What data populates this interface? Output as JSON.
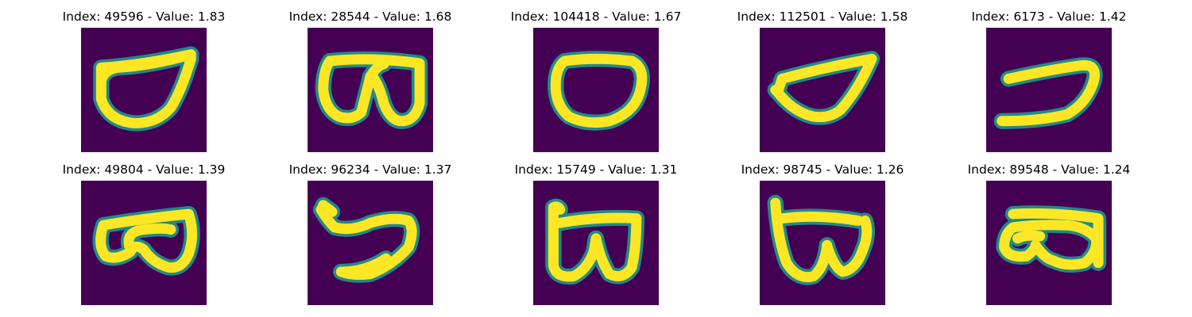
{
  "figure": {
    "colors": {
      "background": "#440154",
      "stroke_edge": "#21918c",
      "stroke_core": "#fde725"
    },
    "panels": [
      {
        "title": "Index: 49596 - Value: 1.83"
      },
      {
        "title": "Index: 28544 - Value: 1.68"
      },
      {
        "title": "Index: 104418 - Value: 1.67"
      },
      {
        "title": "Index: 112501 - Value: 1.58"
      },
      {
        "title": "Index: 6173 - Value: 1.42"
      },
      {
        "title": "Index: 49804 - Value: 1.39"
      },
      {
        "title": "Index: 96234 - Value: 1.37"
      },
      {
        "title": "Index: 15749 - Value: 1.31"
      },
      {
        "title": "Index: 98745 - Value: 1.26"
      },
      {
        "title": "Index: 89548 - Value: 1.24"
      }
    ]
  }
}
